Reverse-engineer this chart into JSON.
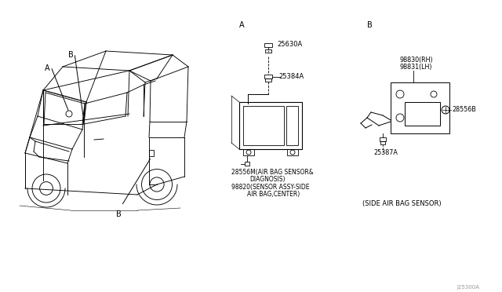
{
  "background_color": "#ffffff",
  "text_color": "#000000",
  "diagram_parts": {
    "section_A_label": "A",
    "section_B_label": "B",
    "part_25630A": "25630A",
    "part_25384A": "25384A",
    "part_28556M_line1": "28556M(AIR BAG SENSOR&",
    "part_28556M_line2": "        DIAGNOSIS)",
    "part_98820_line1": "98820(SENSOR ASSY- SIDE",
    "part_98820_line2": "      AIR BAG, CENTER)",
    "part_98830": "98830(RH)",
    "part_98831": "98831(LH)",
    "part_28556B": "28556B",
    "part_25387A": "25387A",
    "side_air_bag": "(SIDE AIR BAG SENSOR)",
    "watermark": "J25300A",
    "label_A": "A",
    "label_B": "B"
  }
}
